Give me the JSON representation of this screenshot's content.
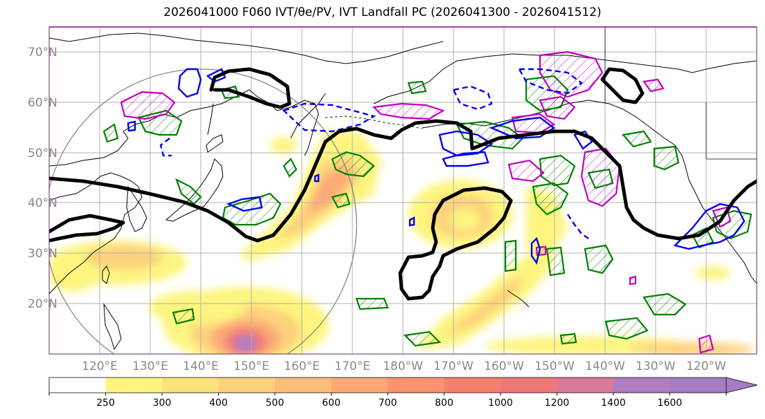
{
  "title": "2026041000 F060 IVT/θe/PV, IVT Landfall PC (2026041300 - 2026041512)",
  "latitude_labels": [
    "70°N",
    "60°N",
    "50°N",
    "40°N",
    "30°N",
    "20°N"
  ],
  "longitude_labels": [
    "120°E",
    "130°E",
    "140°E",
    "150°E",
    "160°E",
    "170°E",
    "180°W",
    "170°W",
    "160°W",
    "150°W",
    "140°W",
    "130°W",
    "120°W"
  ],
  "colorbar": {
    "levels": [
      "250",
      "300",
      "400",
      "500",
      "600",
      "700",
      "800",
      "1000",
      "1200",
      "1400",
      "1600"
    ],
    "colors": [
      "#ffffff",
      "#fdf57f",
      "#fde37c",
      "#fdd27b",
      "#fdbe7a",
      "#fca877",
      "#fb9270",
      "#f6806f",
      "#ef7977",
      "#d87a96",
      "#b17cc0",
      "#a67cc4"
    ]
  },
  "map": {
    "projection": "PlateCarree",
    "lon_range": [
      "110°E",
      "110°W"
    ],
    "lat_range": [
      "10°N",
      "75°N"
    ],
    "gridlines": true,
    "contour_colors": {
      "theta_e": "#000000",
      "pv_positive": "#0000ff",
      "pv_negative_dashed": "#0000ff",
      "ivt_green": "#008000",
      "landfall_magenta": "#c000c0",
      "range_circle": "#808080"
    }
  }
}
